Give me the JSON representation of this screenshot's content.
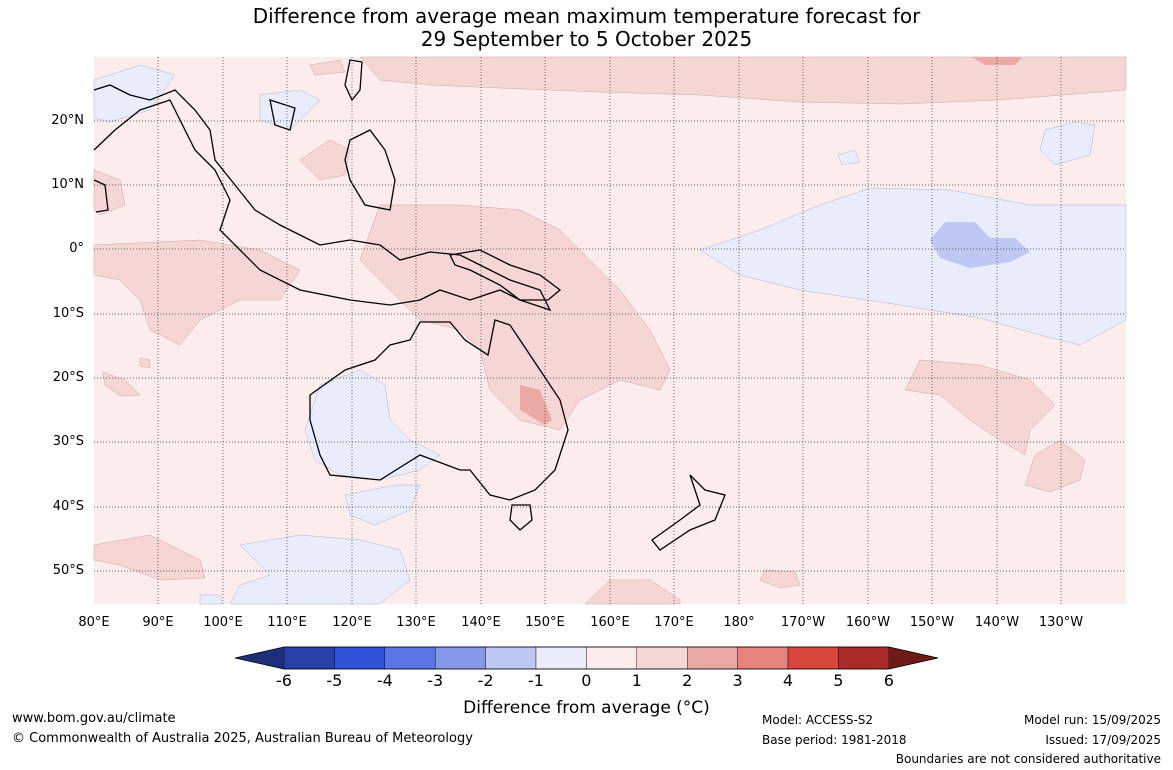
{
  "title_line1": "Difference from average mean maximum temperature forecast for",
  "title_line2": "29 September to 5 October 2025",
  "lat_labels": [
    "20°N",
    "10°N",
    "0°",
    "10°S",
    "20°S",
    "30°S",
    "40°S",
    "50°S"
  ],
  "lon_labels": [
    "80°E",
    "90°E",
    "100°E",
    "110°E",
    "120°E",
    "130°E",
    "140°E",
    "150°E",
    "160°E",
    "170°E",
    "180°",
    "170°W",
    "160°W",
    "150°W",
    "140°W",
    "130°W"
  ],
  "colorbar": {
    "ticks": [
      "-6",
      "-5",
      "-4",
      "-3",
      "-2",
      "-1",
      "0",
      "1",
      "2",
      "3",
      "4",
      "5",
      "6"
    ],
    "colors": [
      "#2a3fa8",
      "#2f52d8",
      "#5a75e4",
      "#8598ea",
      "#bfc8f3",
      "#e9edfb",
      "#fdecec",
      "#f6d5d5",
      "#eaa9a5",
      "#e5837c",
      "#d9463c",
      "#a92a26"
    ],
    "low_extend_color": "#1e2f7a",
    "high_extend_color": "#6e1a18",
    "label": "Difference from average (°C)"
  },
  "footer": {
    "website": "www.bom.gov.au/climate",
    "copyright": "© Commonwealth of Australia 2025, Australian Bureau of Meteorology",
    "model": "Model: ACCESS-S2",
    "base_period": "Base period: 1981-2018",
    "model_run": "Model run: 15/09/2025",
    "issued": "Issued: 17/09/2025",
    "disclaimer": "Boundaries are not considered authoritative"
  }
}
